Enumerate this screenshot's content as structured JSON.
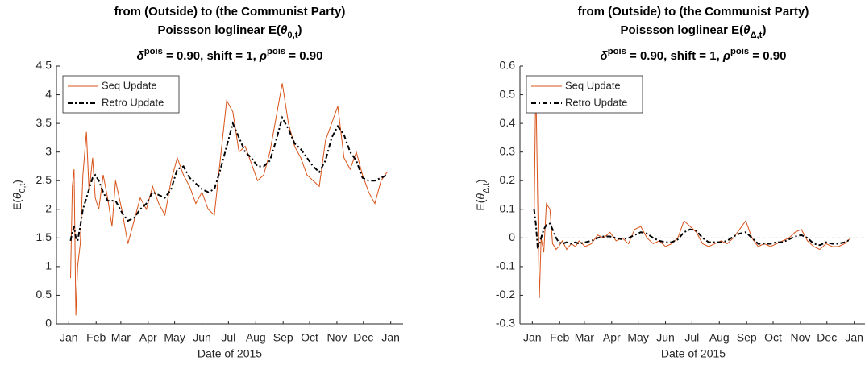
{
  "chart_data": [
    {
      "type": "line",
      "title": "from (Outside) to (the Communist Party)",
      "subtitle": [
        "Poissson loglinear E(",
        "θ",
        "0,t",
        ")"
      ],
      "annotation": [
        "δ",
        "pois",
        " = 0.90, shift = 1, ",
        "ρ",
        "pois",
        " = 0.90"
      ],
      "xlabel": "Date of 2015",
      "ylabel": [
        "E(",
        "θ",
        "0,t",
        ")"
      ],
      "xlim": [
        -13,
        380
      ],
      "ylim": [
        0,
        4.5
      ],
      "xticks": [
        {
          "value": 1,
          "label": "Jan"
        },
        {
          "value": 32,
          "label": "Feb"
        },
        {
          "value": 60,
          "label": "Mar"
        },
        {
          "value": 91,
          "label": "Apr"
        },
        {
          "value": 121,
          "label": "May"
        },
        {
          "value": 152,
          "label": "Jun"
        },
        {
          "value": 182,
          "label": "Jul"
        },
        {
          "value": 213,
          "label": "Aug"
        },
        {
          "value": 244,
          "label": "Sep"
        },
        {
          "value": 274,
          "label": "Oct"
        },
        {
          "value": 305,
          "label": "Nov"
        },
        {
          "value": 335,
          "label": "Dec"
        },
        {
          "value": 366,
          "label": "Jan"
        }
      ],
      "yticks": [
        0,
        0.5,
        1,
        1.5,
        2,
        2.5,
        3,
        3.5,
        4,
        4.5
      ],
      "zero_line": false,
      "x": [
        3,
        5,
        7,
        9,
        11,
        14,
        17,
        21,
        24,
        28,
        31,
        35,
        40,
        45,
        50,
        54,
        61,
        68,
        75,
        82,
        89,
        96,
        103,
        110,
        117,
        124,
        131,
        138,
        145,
        152,
        159,
        166,
        173,
        180,
        187,
        194,
        201,
        208,
        215,
        222,
        229,
        236,
        243,
        250,
        257,
        264,
        271,
        278,
        285,
        292,
        299,
        306,
        313,
        320,
        327,
        334,
        341,
        348,
        355,
        362
      ],
      "series": [
        {
          "name": "Seq Update",
          "color": "#d95319",
          "dash": "none",
          "values": [
            0.8,
            2.4,
            2.7,
            0.15,
            1.0,
            1.4,
            2.6,
            3.35,
            2.3,
            2.9,
            2.2,
            2.0,
            2.6,
            2.2,
            1.7,
            2.5,
            2.0,
            1.4,
            1.8,
            2.2,
            2.0,
            2.4,
            2.1,
            1.9,
            2.5,
            2.9,
            2.6,
            2.4,
            2.1,
            2.3,
            2.0,
            1.9,
            2.9,
            3.9,
            3.7,
            3.0,
            3.1,
            2.8,
            2.5,
            2.6,
            3.0,
            3.6,
            4.2,
            3.5,
            3.1,
            2.9,
            2.6,
            2.5,
            2.4,
            3.2,
            3.5,
            3.8,
            2.9,
            2.7,
            3.0,
            2.6,
            2.3,
            2.1,
            2.5,
            2.65
          ]
        },
        {
          "name": "Retro Update",
          "color": "#000000",
          "dash": "dashdot",
          "values": [
            1.45,
            1.6,
            1.7,
            1.5,
            1.45,
            1.7,
            2.0,
            2.2,
            2.35,
            2.55,
            2.6,
            2.5,
            2.3,
            2.15,
            2.15,
            2.15,
            1.95,
            1.8,
            1.85,
            2.0,
            2.1,
            2.3,
            2.25,
            2.2,
            2.35,
            2.7,
            2.75,
            2.55,
            2.45,
            2.35,
            2.3,
            2.35,
            2.7,
            3.1,
            3.5,
            3.25,
            3.0,
            2.9,
            2.75,
            2.75,
            2.85,
            3.2,
            3.6,
            3.4,
            3.15,
            3.05,
            2.9,
            2.75,
            2.65,
            2.85,
            3.25,
            3.45,
            3.3,
            3.0,
            2.85,
            2.55,
            2.5,
            2.5,
            2.55,
            2.6
          ]
        }
      ],
      "legend": "upper left"
    },
    {
      "type": "line",
      "title": "from (Outside) to (the Communist Party)",
      "subtitle": [
        "Poissson loglinear E(",
        "θ",
        "Δ,t",
        ")"
      ],
      "annotation": [
        "δ",
        "pois",
        " = 0.90, shift = 1, ",
        "ρ",
        "pois",
        " = 0.90"
      ],
      "xlabel": "Date of 2015",
      "ylabel": [
        "E(",
        "θ",
        "Δ,t",
        ")"
      ],
      "xlim": [
        -13,
        380
      ],
      "ylim": [
        -0.3,
        0.6
      ],
      "xticks": [
        {
          "value": 1,
          "label": "Jan"
        },
        {
          "value": 32,
          "label": "Feb"
        },
        {
          "value": 60,
          "label": "Mar"
        },
        {
          "value": 91,
          "label": "Apr"
        },
        {
          "value": 121,
          "label": "May"
        },
        {
          "value": 152,
          "label": "Jun"
        },
        {
          "value": 182,
          "label": "Jul"
        },
        {
          "value": 213,
          "label": "Aug"
        },
        {
          "value": 244,
          "label": "Sep"
        },
        {
          "value": 274,
          "label": "Oct"
        },
        {
          "value": 305,
          "label": "Nov"
        },
        {
          "value": 335,
          "label": "Dec"
        },
        {
          "value": 366,
          "label": "Jan"
        }
      ],
      "yticks": [
        -0.3,
        -0.2,
        -0.1,
        0,
        0.1,
        0.2,
        0.3,
        0.4,
        0.5,
        0.6
      ],
      "zero_line": true,
      "x": [
        3,
        5,
        7,
        9,
        11,
        14,
        17,
        21,
        24,
        28,
        31,
        35,
        40,
        45,
        50,
        54,
        61,
        68,
        75,
        82,
        89,
        96,
        103,
        110,
        117,
        124,
        131,
        138,
        145,
        152,
        159,
        166,
        173,
        180,
        187,
        194,
        201,
        208,
        215,
        222,
        229,
        236,
        243,
        250,
        257,
        264,
        271,
        278,
        285,
        292,
        299,
        306,
        313,
        320,
        327,
        334,
        341,
        348,
        355,
        362
      ],
      "series": [
        {
          "name": "Seq Update",
          "color": "#d95319",
          "dash": "none",
          "values": [
            0.05,
            0.55,
            0.15,
            -0.21,
            0.0,
            -0.05,
            0.12,
            0.1,
            -0.02,
            -0.04,
            -0.03,
            -0.01,
            -0.04,
            -0.02,
            -0.03,
            -0.01,
            -0.03,
            -0.02,
            0.01,
            0.0,
            0.02,
            -0.01,
            0.0,
            -0.02,
            0.03,
            0.04,
            0.0,
            -0.02,
            -0.01,
            -0.03,
            -0.02,
            0.0,
            0.06,
            0.04,
            0.02,
            -0.02,
            -0.03,
            -0.02,
            -0.01,
            -0.02,
            0.0,
            0.03,
            0.06,
            0.0,
            -0.03,
            -0.02,
            -0.03,
            -0.02,
            -0.01,
            0.0,
            0.02,
            0.03,
            -0.01,
            -0.03,
            -0.04,
            -0.02,
            -0.03,
            -0.03,
            -0.02,
            0.0
          ]
        },
        {
          "name": "Retro Update",
          "color": "#000000",
          "dash": "dashdot",
          "values": [
            0.1,
            0.05,
            -0.03,
            -0.02,
            0.0,
            0.03,
            0.045,
            0.05,
            0.03,
            0.0,
            -0.015,
            -0.02,
            -0.015,
            -0.02,
            -0.015,
            -0.02,
            -0.015,
            -0.01,
            0.0,
            0.005,
            0.005,
            0.0,
            -0.005,
            0.0,
            0.01,
            0.02,
            0.015,
            0.0,
            -0.01,
            -0.015,
            -0.015,
            -0.005,
            0.02,
            0.03,
            0.025,
            0.0,
            -0.015,
            -0.015,
            -0.015,
            -0.01,
            0.005,
            0.015,
            0.02,
            0.0,
            -0.02,
            -0.02,
            -0.02,
            -0.015,
            -0.015,
            -0.005,
            0.005,
            0.01,
            0.0,
            -0.02,
            -0.025,
            -0.015,
            -0.02,
            -0.02,
            -0.015,
            -0.005
          ]
        }
      ],
      "legend": "upper left"
    }
  ]
}
